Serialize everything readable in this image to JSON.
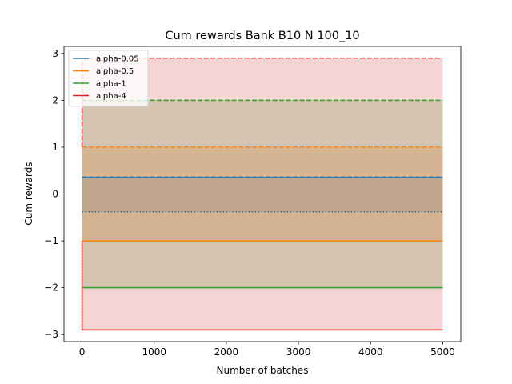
{
  "chart_data": {
    "type": "line",
    "title": "Cum rewards Bank B10 N 100_10",
    "xlabel": "Number of batches",
    "ylabel": "Cum rewards",
    "xlim": [
      -250,
      5250
    ],
    "ylim": [
      -3.15,
      3.15
    ],
    "xticks": [
      0,
      1000,
      2000,
      3000,
      4000,
      5000
    ],
    "yticks": [
      -3,
      -2,
      -1,
      0,
      1,
      2,
      3
    ],
    "legend_position": "top-left",
    "grid": false,
    "series": [
      {
        "name": "alpha-0.05",
        "color": "#1f77b4",
        "x": [
          0,
          100,
          5000
        ],
        "mean": [
          0.35,
          0.35,
          0.35
        ],
        "lower": [
          -0.38,
          -0.38,
          -0.38
        ],
        "upper": [
          0.36,
          0.36,
          0.36
        ],
        "band_opacity": 0.2
      },
      {
        "name": "alpha-0.5",
        "color": "#ff7f0e",
        "x": [
          0,
          100,
          5000
        ],
        "mean": [
          -1.0,
          -1.0,
          -1.0
        ],
        "lower": [
          -1.0,
          -1.0,
          -1.0
        ],
        "upper": [
          1.0,
          1.0,
          1.0
        ],
        "band_opacity": 0.2
      },
      {
        "name": "alpha-1",
        "color": "#2ca02c",
        "x": [
          0,
          100,
          5000
        ],
        "mean": [
          -2.0,
          -2.0,
          -2.0
        ],
        "lower": [
          -2.0,
          -2.0,
          -2.0
        ],
        "upper": [
          2.0,
          2.0,
          2.0
        ],
        "band_opacity": 0.2
      },
      {
        "name": "alpha-4",
        "color": "#d62728",
        "x": [
          0,
          0,
          5000
        ],
        "mean": [
          -1.0,
          -2.9,
          -2.9
        ],
        "lower": [
          -1.0,
          -2.9,
          -2.9
        ],
        "upper": [
          1.0,
          2.9,
          2.9
        ],
        "band_opacity": 0.2
      }
    ]
  }
}
